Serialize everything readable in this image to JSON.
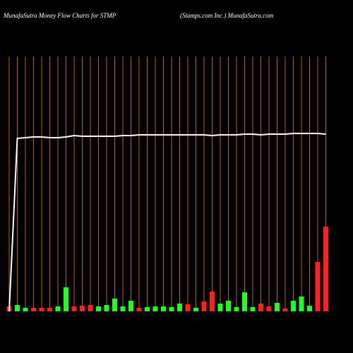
{
  "chart_data": {
    "type": "bar",
    "title": "MunafaSutra  Money Flow  Charts for STMP",
    "subtitle": "(Stamps.com Inc.) MunafaSutra.com",
    "categories": [
      null,
      null,
      null,
      null,
      null,
      null,
      null,
      null,
      null,
      null,
      null,
      null,
      null,
      null,
      null,
      null,
      null,
      null,
      null,
      null,
      null,
      null,
      null,
      null,
      null,
      null,
      null,
      null,
      null,
      null,
      null,
      null,
      null,
      null,
      null,
      null,
      null,
      null,
      null,
      null
    ],
    "series": [
      {
        "name": null,
        "type": "bar",
        "colors": [
          "#ff2020",
          "#20ff20",
          "#20ff20",
          "#ff2020",
          "#ff2020",
          "#ff2020",
          "#20ff20",
          "#20ff20",
          "#ff2020",
          "#ff2020",
          "#ff2020",
          "#20ff20",
          "#20ff20",
          "#20ff20",
          "#20ff20",
          "#20ff20",
          "#ff2020",
          "#20ff20",
          "#20ff20",
          "#20ff20",
          "#20ff20",
          "#20ff20",
          "#ff2020",
          "#20ff20",
          "#ff2020",
          "#ff2020",
          "#20ff20",
          "#20ff20",
          "#20ff20",
          "#20ff20",
          "#20ff20",
          "#ff2020",
          "#ff2020",
          "#20ff20",
          "#ff2020",
          "#20ff20",
          "#20ff20",
          "#20ff20",
          "#ff2020",
          "#ff2020"
        ],
        "values": [
          7,
          9,
          5,
          5,
          5,
          5,
          7,
          34,
          7,
          8,
          9,
          7,
          9,
          18,
          7,
          15,
          5,
          6,
          7,
          7,
          6,
          11,
          10,
          5,
          14,
          28,
          11,
          15,
          6,
          27,
          6,
          11,
          7,
          12,
          4,
          15,
          21,
          8,
          70,
          120
        ]
      },
      {
        "name": null,
        "type": "line",
        "color": "#ffffff",
        "values": [
          0,
          245,
          246,
          247,
          247,
          246,
          246,
          247,
          249,
          248,
          248,
          248,
          248,
          248,
          249,
          249,
          250,
          250,
          250,
          250,
          250,
          250,
          250,
          250,
          250,
          249,
          250,
          250,
          250,
          251,
          251,
          250,
          251,
          251,
          251,
          252,
          252,
          252,
          252,
          251
        ]
      }
    ],
    "ylim": [
      0,
      361
    ]
  }
}
